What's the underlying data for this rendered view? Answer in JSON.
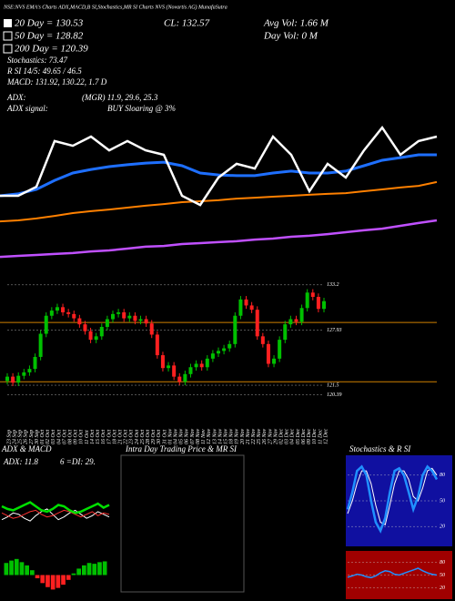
{
  "header": {
    "title": "NSE:NVS EMA's Charts ADX,MACD,B SI,Stochastics,MR SI Charts NVS (Novartis AG) MunafaSutra",
    "ema20": "20 Day = 130.53",
    "ema50": "50 Day = 128.82",
    "ema200": "200 Day = 120.39",
    "stochastics": "Stochastics: 73.47",
    "rsi": "R      SI 14/5: 49.65 / 46.5",
    "macd": "MACD: 131.92, 130.22, 1.7 D",
    "adx_label": "ADX:",
    "adx_values": "(MGR) 11.9, 29.6, 25.3",
    "adx_signal_label": "ADX  signal:",
    "adx_signal": "BUY Sloaring @ 3%",
    "close": "CL: 132.57",
    "avg_vol": "Avg Vol: 1.66  M",
    "day_vol": "Day Vol: 0  M"
  },
  "chart_data": [
    {
      "type": "line",
      "ylim": [
        0,
        100
      ],
      "series": [
        {
          "color": "#ff8000",
          "values": [
            21.9,
            22.3,
            23.1,
            24.2,
            25.4,
            26.2,
            26.9,
            27.7,
            28.5,
            29.2,
            30,
            30.4,
            30.8,
            31.5,
            31.9,
            32.3,
            32.7,
            33.1,
            33.5,
            33.8,
            34.6,
            35.4,
            36.2,
            36.9,
            38.5
          ]
        },
        {
          "color": "#c050ff",
          "values": [
            6.9,
            7.3,
            7.7,
            8.1,
            8.5,
            9.2,
            9.6,
            10.4,
            11.2,
            11.5,
            12.3,
            12.7,
            13.1,
            13.5,
            14.2,
            14.6,
            15.4,
            15.8,
            16.5,
            17.3,
            18.1,
            18.8,
            20,
            21.2,
            22.3
          ]
        },
        {
          "color": "#1e6fff",
          "values": [
            32.7,
            33.5,
            35.4,
            39.2,
            42.3,
            43.8,
            45,
            45.8,
            46.5,
            46.9,
            45.4,
            42.3,
            41.5,
            41.2,
            41.2,
            42.3,
            43.1,
            42.3,
            42.3,
            43.1,
            45.4,
            47.7,
            48.8,
            50,
            50
          ]
        },
        {
          "color": "#ffffff",
          "values": [
            32.7,
            32.7,
            36.5,
            55.8,
            53.8,
            57.7,
            51.9,
            55.8,
            51.9,
            50,
            32.7,
            28.8,
            40.4,
            46.2,
            44.2,
            57.7,
            50,
            34.6,
            46.2,
            40.4,
            51.9,
            61.5,
            50,
            55.8,
            57.7
          ]
        }
      ]
    },
    {
      "type": "candlestick",
      "categories": [
        "23 Sep",
        "24 Sep",
        "25 Sep",
        "26 Sep",
        "27 Sep",
        "30 Sep",
        "01 Oct",
        "02 Oct",
        "03 Oct",
        "04 Oct",
        "07 Oct",
        "08 Oct",
        "09 Oct",
        "10 Oct",
        "11 Oct",
        "14 Oct",
        "15 Oct",
        "16 Oct",
        "17 Oct",
        "18 Oct",
        "21 Oct",
        "22 Oct",
        "23 Oct",
        "24 Oct",
        "25 Oct",
        "28 Oct",
        "29 Oct",
        "30 Oct",
        "31 Oct",
        "01 Nov",
        "04 Nov",
        "05 Nov",
        "06 Nov",
        "07 Nov",
        "08 Nov",
        "11 Nov",
        "12 Nov",
        "13 Nov",
        "14 Nov",
        "15 Nov",
        "18 Nov",
        "19 Nov",
        "20 Nov",
        "21 Nov",
        "22 Nov",
        "25 Nov",
        "26 Nov",
        "27 Nov",
        "29 Nov",
        "02 Dec",
        "03 Dec",
        "04 Dec",
        "05 Dec",
        "06 Dec",
        "09 Dec",
        "10 Dec",
        "11 Dec",
        "12 Dec"
      ],
      "open": [
        122.0,
        122.5,
        121.8,
        122.6,
        123.0,
        123.4,
        124.8,
        127.5,
        129.6,
        130.2,
        130.6,
        130.0,
        129.8,
        129.3,
        128.6,
        127.8,
        126.8,
        127.2,
        128.3,
        129.2,
        129.8,
        130.0,
        129.3,
        129.6,
        129.0,
        129.2,
        128.7,
        127.4,
        125.0,
        123.5,
        123.8,
        122.5,
        121.9,
        122.8,
        123.6,
        124.0,
        123.6,
        124.6,
        125.2,
        125.5,
        125.8,
        126.3,
        129.6,
        131.5,
        130.8,
        130.3,
        127.2,
        126.3,
        124.0,
        124.6,
        126.8,
        128.6,
        129.2,
        128.9,
        130.5,
        132.3,
        131.8,
        130.4
      ],
      "high": [
        122.9,
        122.9,
        123.0,
        123.4,
        123.8,
        125.2,
        127.9,
        130.0,
        130.6,
        131.0,
        131.0,
        130.4,
        130.2,
        129.7,
        129.0,
        128.2,
        127.6,
        128.7,
        129.6,
        130.2,
        130.4,
        130.4,
        130.0,
        130.0,
        129.6,
        129.6,
        129.1,
        127.8,
        125.4,
        124.2,
        124.2,
        122.9,
        123.2,
        124.0,
        124.4,
        124.4,
        125.0,
        125.6,
        125.9,
        126.2,
        126.7,
        130.0,
        131.9,
        131.9,
        131.2,
        130.7,
        127.6,
        126.7,
        125.0,
        127.2,
        129.0,
        129.6,
        129.6,
        130.9,
        132.7,
        132.7,
        132.2,
        131.7
      ],
      "low": [
        121.6,
        121.4,
        121.4,
        122.2,
        122.6,
        123.0,
        124.4,
        127.1,
        129.2,
        129.8,
        129.6,
        129.4,
        128.9,
        128.2,
        127.4,
        126.4,
        126.4,
        126.8,
        127.9,
        128.8,
        129.4,
        128.9,
        128.9,
        128.6,
        128.6,
        128.3,
        127.0,
        124.6,
        123.1,
        123.1,
        122.1,
        121.5,
        121.5,
        122.4,
        123.2,
        123.2,
        123.2,
        124.2,
        124.8,
        125.1,
        125.4,
        125.9,
        129.2,
        130.4,
        129.9,
        126.8,
        125.9,
        123.6,
        123.6,
        124.2,
        126.4,
        128.2,
        128.5,
        128.5,
        130.1,
        131.4,
        130.0,
        130.0
      ],
      "close": [
        122.5,
        121.8,
        122.6,
        123.0,
        123.4,
        124.8,
        127.5,
        129.6,
        130.2,
        130.6,
        130.0,
        129.8,
        129.3,
        128.6,
        127.8,
        126.8,
        127.2,
        128.3,
        129.2,
        129.8,
        130.0,
        129.3,
        129.6,
        129.0,
        129.2,
        128.7,
        127.4,
        125.0,
        123.5,
        123.8,
        122.5,
        121.9,
        122.8,
        123.6,
        124.0,
        123.6,
        124.6,
        125.2,
        125.5,
        125.8,
        126.3,
        129.6,
        131.5,
        130.8,
        130.3,
        127.2,
        126.3,
        124.0,
        124.6,
        126.8,
        128.6,
        129.2,
        128.9,
        130.5,
        132.3,
        131.8,
        130.4,
        131.3
      ],
      "ylim": [
        119.7,
        133.5
      ],
      "yticks": [
        133.2,
        127.93,
        121.5,
        120.39
      ],
      "hlines": [
        128.82,
        121.9
      ],
      "up_color": "#00c000",
      "down_color": "#ff2020"
    },
    {
      "type": "line",
      "title": "ADX  & MACD",
      "annotations": [
        "ADX: 11.8",
        "6  =DI: 29."
      ],
      "ylim": [
        0,
        60
      ],
      "series": [
        {
          "color": "#ffffff",
          "values": [
            20,
            22,
            25,
            24,
            21,
            19,
            23,
            26,
            28,
            24,
            20,
            22,
            25,
            27,
            24,
            21,
            23,
            26,
            24,
            22
          ]
        },
        {
          "color": "#ff3030",
          "values": [
            25,
            23,
            21,
            22,
            24,
            26,
            27,
            24,
            22,
            23,
            25,
            27,
            26,
            24,
            22,
            24,
            26,
            23,
            25,
            24
          ]
        },
        {
          "color": "#00e000",
          "values": [
            30,
            28,
            27,
            29,
            31,
            33,
            30,
            27,
            26,
            28,
            31,
            30,
            27,
            25,
            26,
            28,
            30,
            32,
            29,
            31
          ]
        }
      ]
    },
    {
      "type": "bar",
      "ylim": [
        -3,
        3
      ],
      "up_color": "#00c000",
      "down_color": "#ff2020",
      "values": [
        1.5,
        1.8,
        2.0,
        1.6,
        1.2,
        0.6,
        -0.4,
        -1.0,
        -1.5,
        -1.8,
        -1.6,
        -1.2,
        -0.6,
        0.2,
        0.8,
        1.2,
        1.5,
        1.4,
        1.6,
        1.7
      ]
    },
    {
      "type": "line",
      "title": "Intra Day Trading Price & MR        SI",
      "series": []
    },
    {
      "type": "line",
      "title": "Stochastics & R        SI",
      "ylim": [
        0,
        100
      ],
      "yticks": [
        20,
        50,
        80
      ],
      "series": [
        {
          "color": "#ffffff",
          "values": [
            35,
            50,
            70,
            85,
            85,
            70,
            45,
            25,
            22,
            45,
            70,
            85,
            85,
            75,
            55,
            50,
            65,
            85,
            88,
            80
          ]
        },
        {
          "color": "#2090ff",
          "values": [
            40,
            60,
            85,
            90,
            80,
            50,
            25,
            15,
            30,
            60,
            85,
            88,
            80,
            60,
            40,
            55,
            80,
            90,
            85,
            75
          ]
        }
      ]
    },
    {
      "type": "line",
      "ylim": [
        0,
        100
      ],
      "yticks": [
        20,
        50,
        80
      ],
      "series": [
        {
          "color": "#2090ff",
          "values": [
            45,
            48,
            52,
            50,
            46,
            44,
            48,
            55,
            60,
            58,
            52,
            50,
            54,
            58,
            62,
            66,
            60,
            55,
            52,
            50
          ]
        }
      ]
    }
  ]
}
